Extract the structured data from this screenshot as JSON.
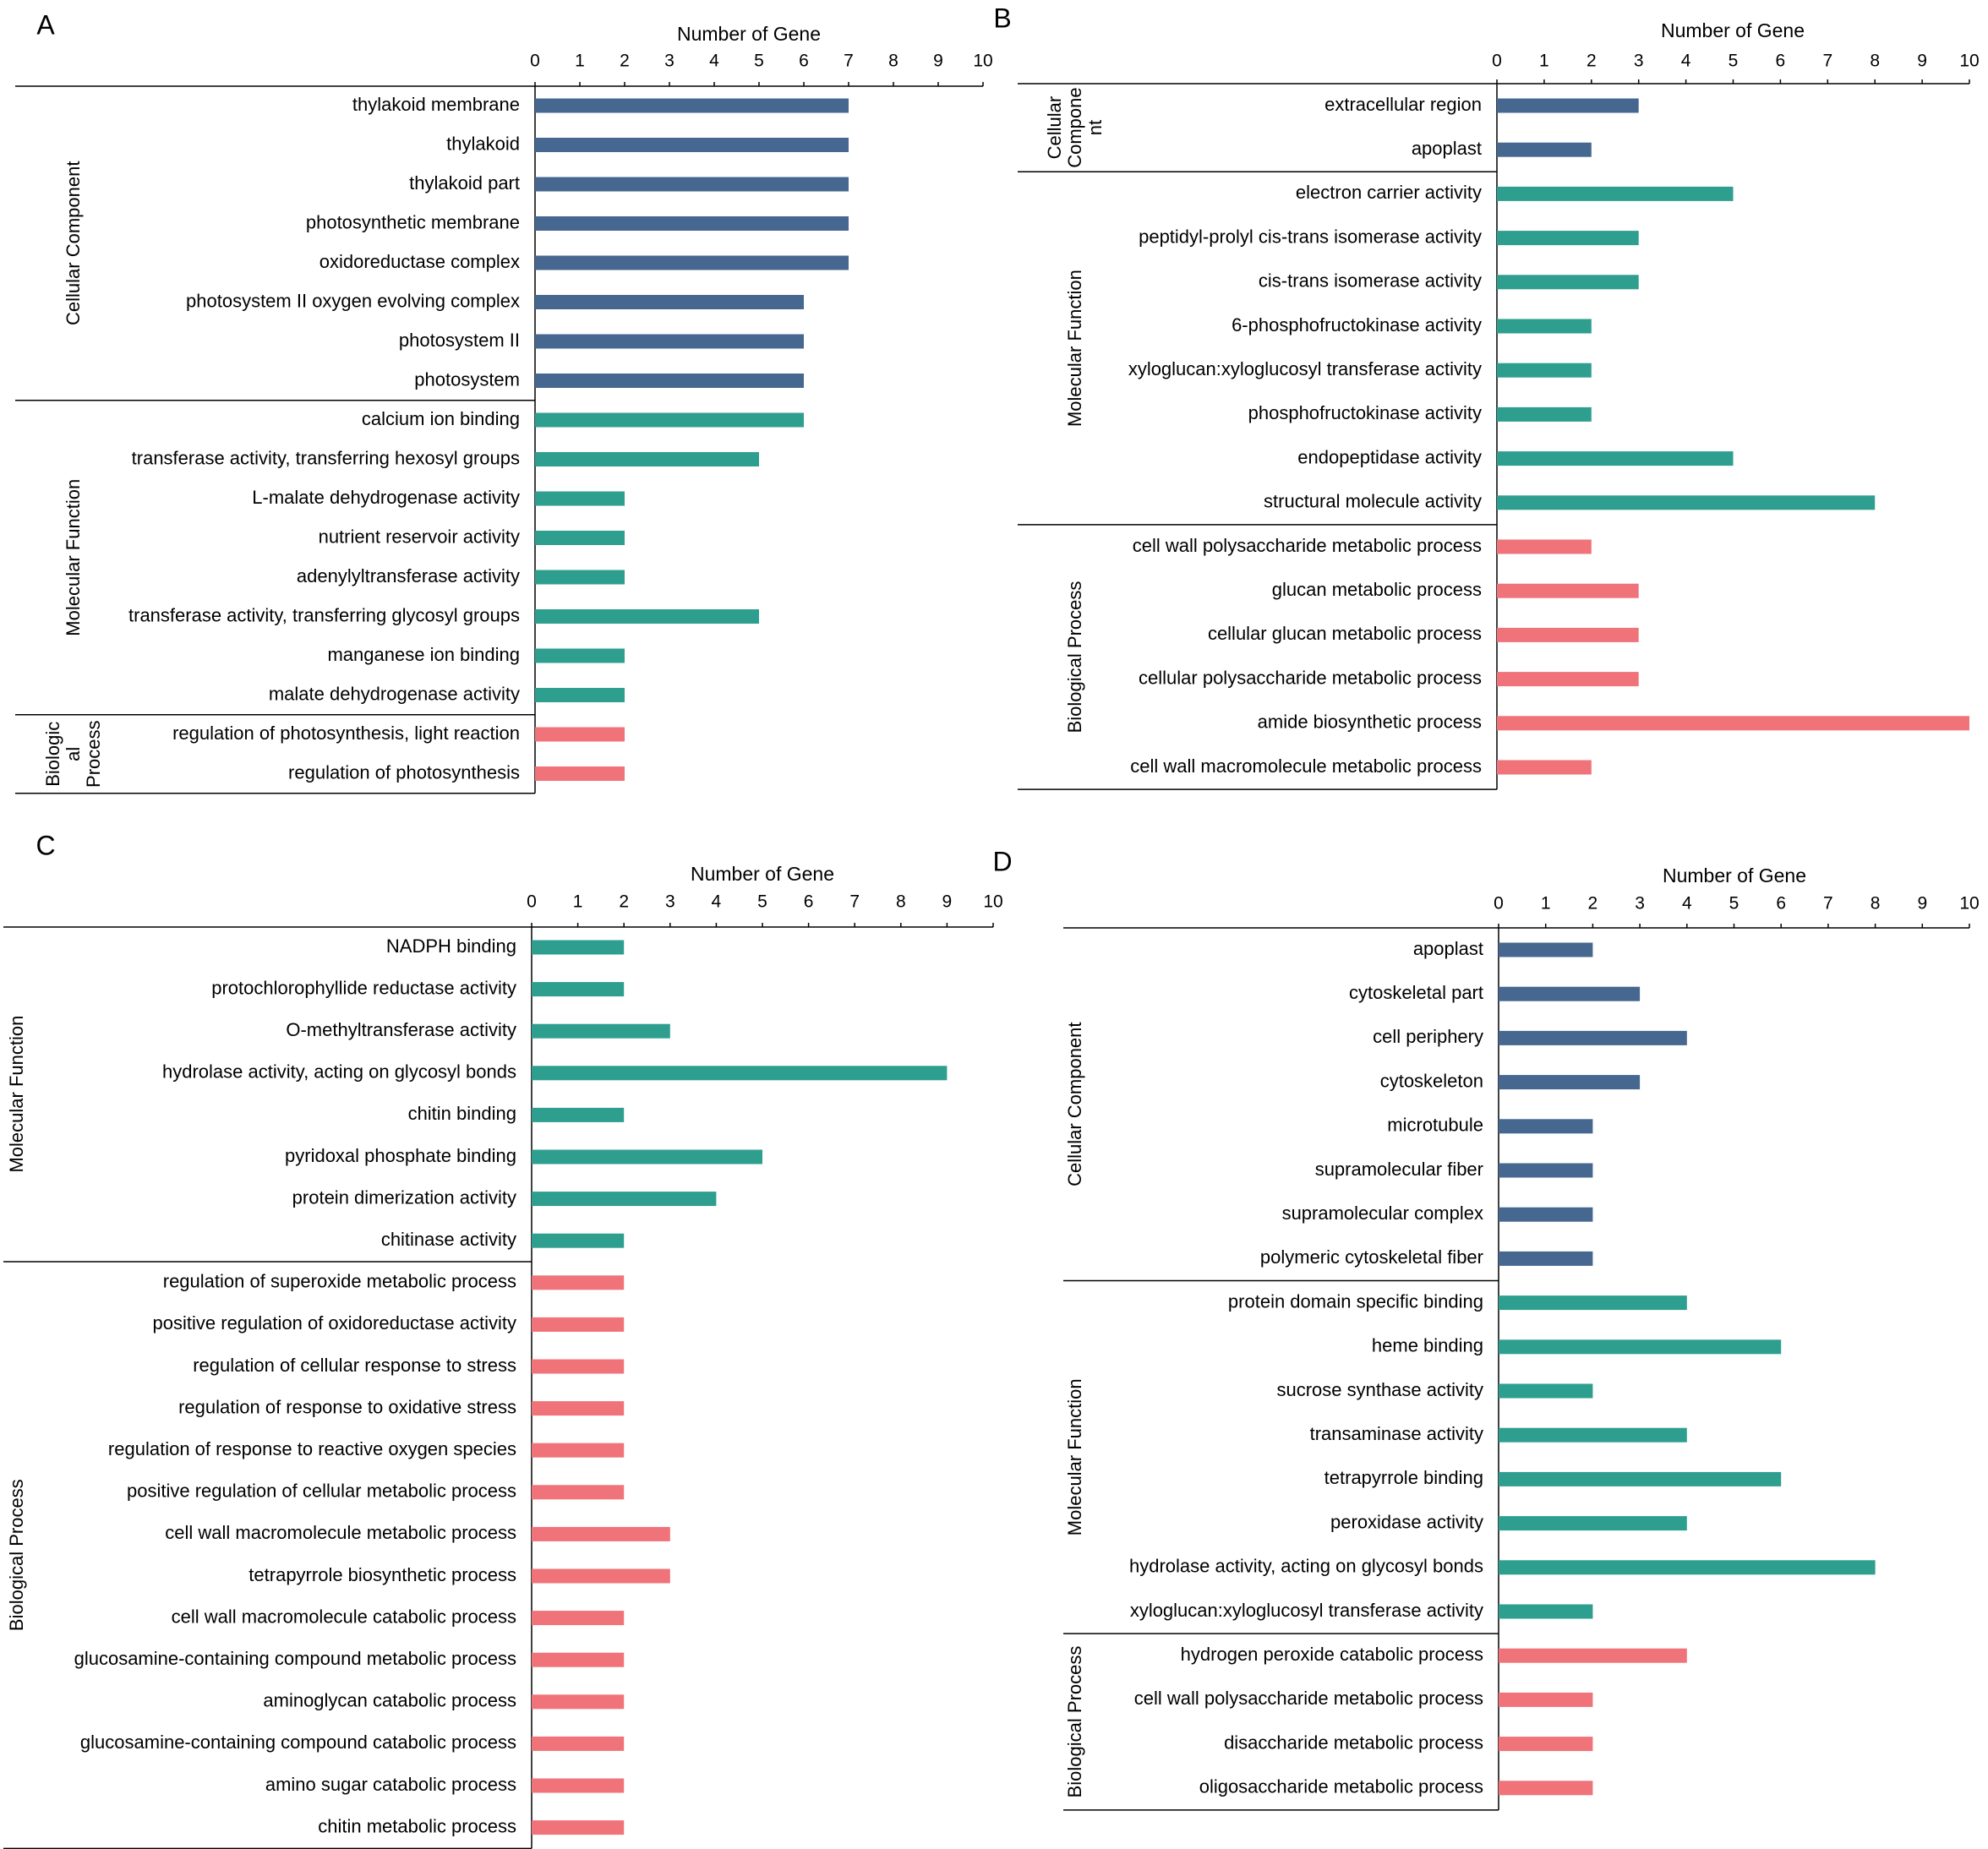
{
  "colors": {
    "cellular_component": "#466790",
    "molecular_function": "#2e9e8f",
    "biological_process": "#ef7379",
    "axis": "#000000"
  },
  "chart_data": [
    {
      "type": "bar",
      "orientation": "horizontal",
      "panel": "A",
      "xlabel": "Number of Gene",
      "xlim": [
        0,
        10
      ],
      "ticks": [
        "0",
        "1",
        "2",
        "3",
        "4",
        "5",
        "6",
        "7",
        "8",
        "9",
        "10"
      ],
      "groups": [
        {
          "name": "Cellular Component",
          "label_lines": [
            "Cellular Component"
          ],
          "color_key": "cellular_component",
          "categories": [
            "thylakoid membrane",
            "thylakoid",
            "thylakoid part",
            "photosynthetic membrane",
            "oxidoreductase complex",
            "photosystem II oxygen evolving complex",
            "photosystem II",
            "photosystem"
          ],
          "values": [
            7,
            7,
            7,
            7,
            7,
            6,
            6,
            6
          ]
        },
        {
          "name": "Molecular Function",
          "label_lines": [
            "Molecular Function"
          ],
          "color_key": "molecular_function",
          "categories": [
            "calcium ion binding",
            "transferase activity, transferring hexosyl groups",
            "L-malate dehydrogenase activity",
            "nutrient reservoir activity",
            "adenylyltransferase activity",
            "transferase activity, transferring glycosyl groups",
            "manganese ion binding",
            "malate dehydrogenase activity"
          ],
          "values": [
            6,
            5,
            2,
            2,
            2,
            5,
            2,
            2
          ]
        },
        {
          "name": "Biological Process",
          "label_lines": [
            "Biologic",
            "al",
            "Process"
          ],
          "color_key": "biological_process",
          "categories": [
            "regulation of photosynthesis, light reaction",
            "regulation of photosynthesis"
          ],
          "values": [
            2,
            2
          ]
        }
      ]
    },
    {
      "type": "bar",
      "orientation": "horizontal",
      "panel": "B",
      "xlabel": "Number of Gene",
      "xlim": [
        0,
        10
      ],
      "ticks": [
        "0",
        "1",
        "2",
        "3",
        "4",
        "5",
        "6",
        "7",
        "8",
        "9",
        "10"
      ],
      "groups": [
        {
          "name": "Cellular Component",
          "label_lines": [
            "Cellular",
            "Compone",
            "nt"
          ],
          "color_key": "cellular_component",
          "categories": [
            "extracellular region",
            "apoplast"
          ],
          "values": [
            3,
            2
          ]
        },
        {
          "name": "Molecular Function",
          "label_lines": [
            "Molecular Function"
          ],
          "color_key": "molecular_function",
          "categories": [
            "electron carrier activity",
            "peptidyl-prolyl cis-trans isomerase activity",
            "cis-trans isomerase activity",
            "6-phosphofructokinase activity",
            "xyloglucan:xyloglucosyl transferase activity",
            "phosphofructokinase activity",
            "endopeptidase activity",
            "structural molecule activity"
          ],
          "values": [
            5,
            3,
            3,
            2,
            2,
            2,
            5,
            8
          ]
        },
        {
          "name": "Biological Process",
          "label_lines": [
            "Biological Process"
          ],
          "color_key": "biological_process",
          "categories": [
            "cell wall polysaccharide metabolic process",
            "glucan metabolic process",
            "cellular glucan metabolic process",
            "cellular polysaccharide metabolic process",
            "amide biosynthetic process",
            "cell wall macromolecule metabolic process"
          ],
          "values": [
            2,
            3,
            3,
            3,
            10,
            2
          ]
        }
      ]
    },
    {
      "type": "bar",
      "orientation": "horizontal",
      "panel": "C",
      "xlabel": "Number of Gene",
      "xlim": [
        0,
        10
      ],
      "ticks": [
        "0",
        "1",
        "2",
        "3",
        "4",
        "5",
        "6",
        "7",
        "8",
        "9",
        "10"
      ],
      "groups": [
        {
          "name": "Molecular Function",
          "label_lines": [
            "Molecular Function"
          ],
          "color_key": "molecular_function",
          "categories": [
            "NADPH binding",
            "protochlorophyllide reductase activity",
            "O-methyltransferase activity",
            "hydrolase activity, acting on glycosyl bonds",
            "chitin binding",
            "pyridoxal phosphate binding",
            "protein dimerization activity",
            "chitinase activity"
          ],
          "values": [
            2,
            2,
            3,
            9,
            2,
            5,
            4,
            2
          ]
        },
        {
          "name": "Biological Process",
          "label_lines": [
            "Biological Process"
          ],
          "color_key": "biological_process",
          "categories": [
            "regulation of superoxide metabolic process",
            "positive regulation of oxidoreductase activity",
            "regulation of cellular response to stress",
            "regulation of response to oxidative stress",
            "regulation of response to reactive oxygen species",
            "positive regulation of cellular metabolic process",
            "cell wall macromolecule metabolic process",
            "tetrapyrrole biosynthetic process",
            "cell wall macromolecule catabolic process",
            "glucosamine-containing compound metabolic process",
            "aminoglycan catabolic process",
            "glucosamine-containing compound catabolic process",
            "amino sugar catabolic process",
            "chitin metabolic process"
          ],
          "values": [
            2,
            2,
            2,
            2,
            2,
            2,
            3,
            3,
            2,
            2,
            2,
            2,
            2,
            2
          ]
        }
      ]
    },
    {
      "type": "bar",
      "orientation": "horizontal",
      "panel": "D",
      "xlabel": "Number of Gene",
      "xlim": [
        0,
        10
      ],
      "ticks": [
        "0",
        "1",
        "2",
        "3",
        "4",
        "5",
        "6",
        "7",
        "8",
        "9",
        "10"
      ],
      "groups": [
        {
          "name": "Cellular Component",
          "label_lines": [
            "Cellular Component"
          ],
          "color_key": "cellular_component",
          "categories": [
            "apoplast",
            "cytoskeletal part",
            "cell periphery",
            "cytoskeleton",
            "microtubule",
            "supramolecular fiber",
            "supramolecular complex",
            "polymeric cytoskeletal fiber"
          ],
          "values": [
            2,
            3,
            4,
            3,
            2,
            2,
            2,
            2
          ]
        },
        {
          "name": "Molecular Function",
          "label_lines": [
            "Molecular Function"
          ],
          "color_key": "molecular_function",
          "categories": [
            "protein domain specific binding",
            "heme binding",
            "sucrose synthase activity",
            "transaminase activity",
            "tetrapyrrole binding",
            "peroxidase activity",
            "hydrolase activity, acting on glycosyl bonds",
            "xyloglucan:xyloglucosyl transferase activity"
          ],
          "values": [
            4,
            6,
            2,
            4,
            6,
            4,
            8,
            2
          ]
        },
        {
          "name": "Biological Process",
          "label_lines": [
            "Biological Process"
          ],
          "color_key": "biological_process",
          "categories": [
            "hydrogen peroxide catabolic process",
            "cell wall polysaccharide metabolic process",
            "disaccharide metabolic process",
            "oligosaccharide metabolic process"
          ],
          "values": [
            4,
            2,
            2,
            2
          ]
        }
      ]
    }
  ]
}
